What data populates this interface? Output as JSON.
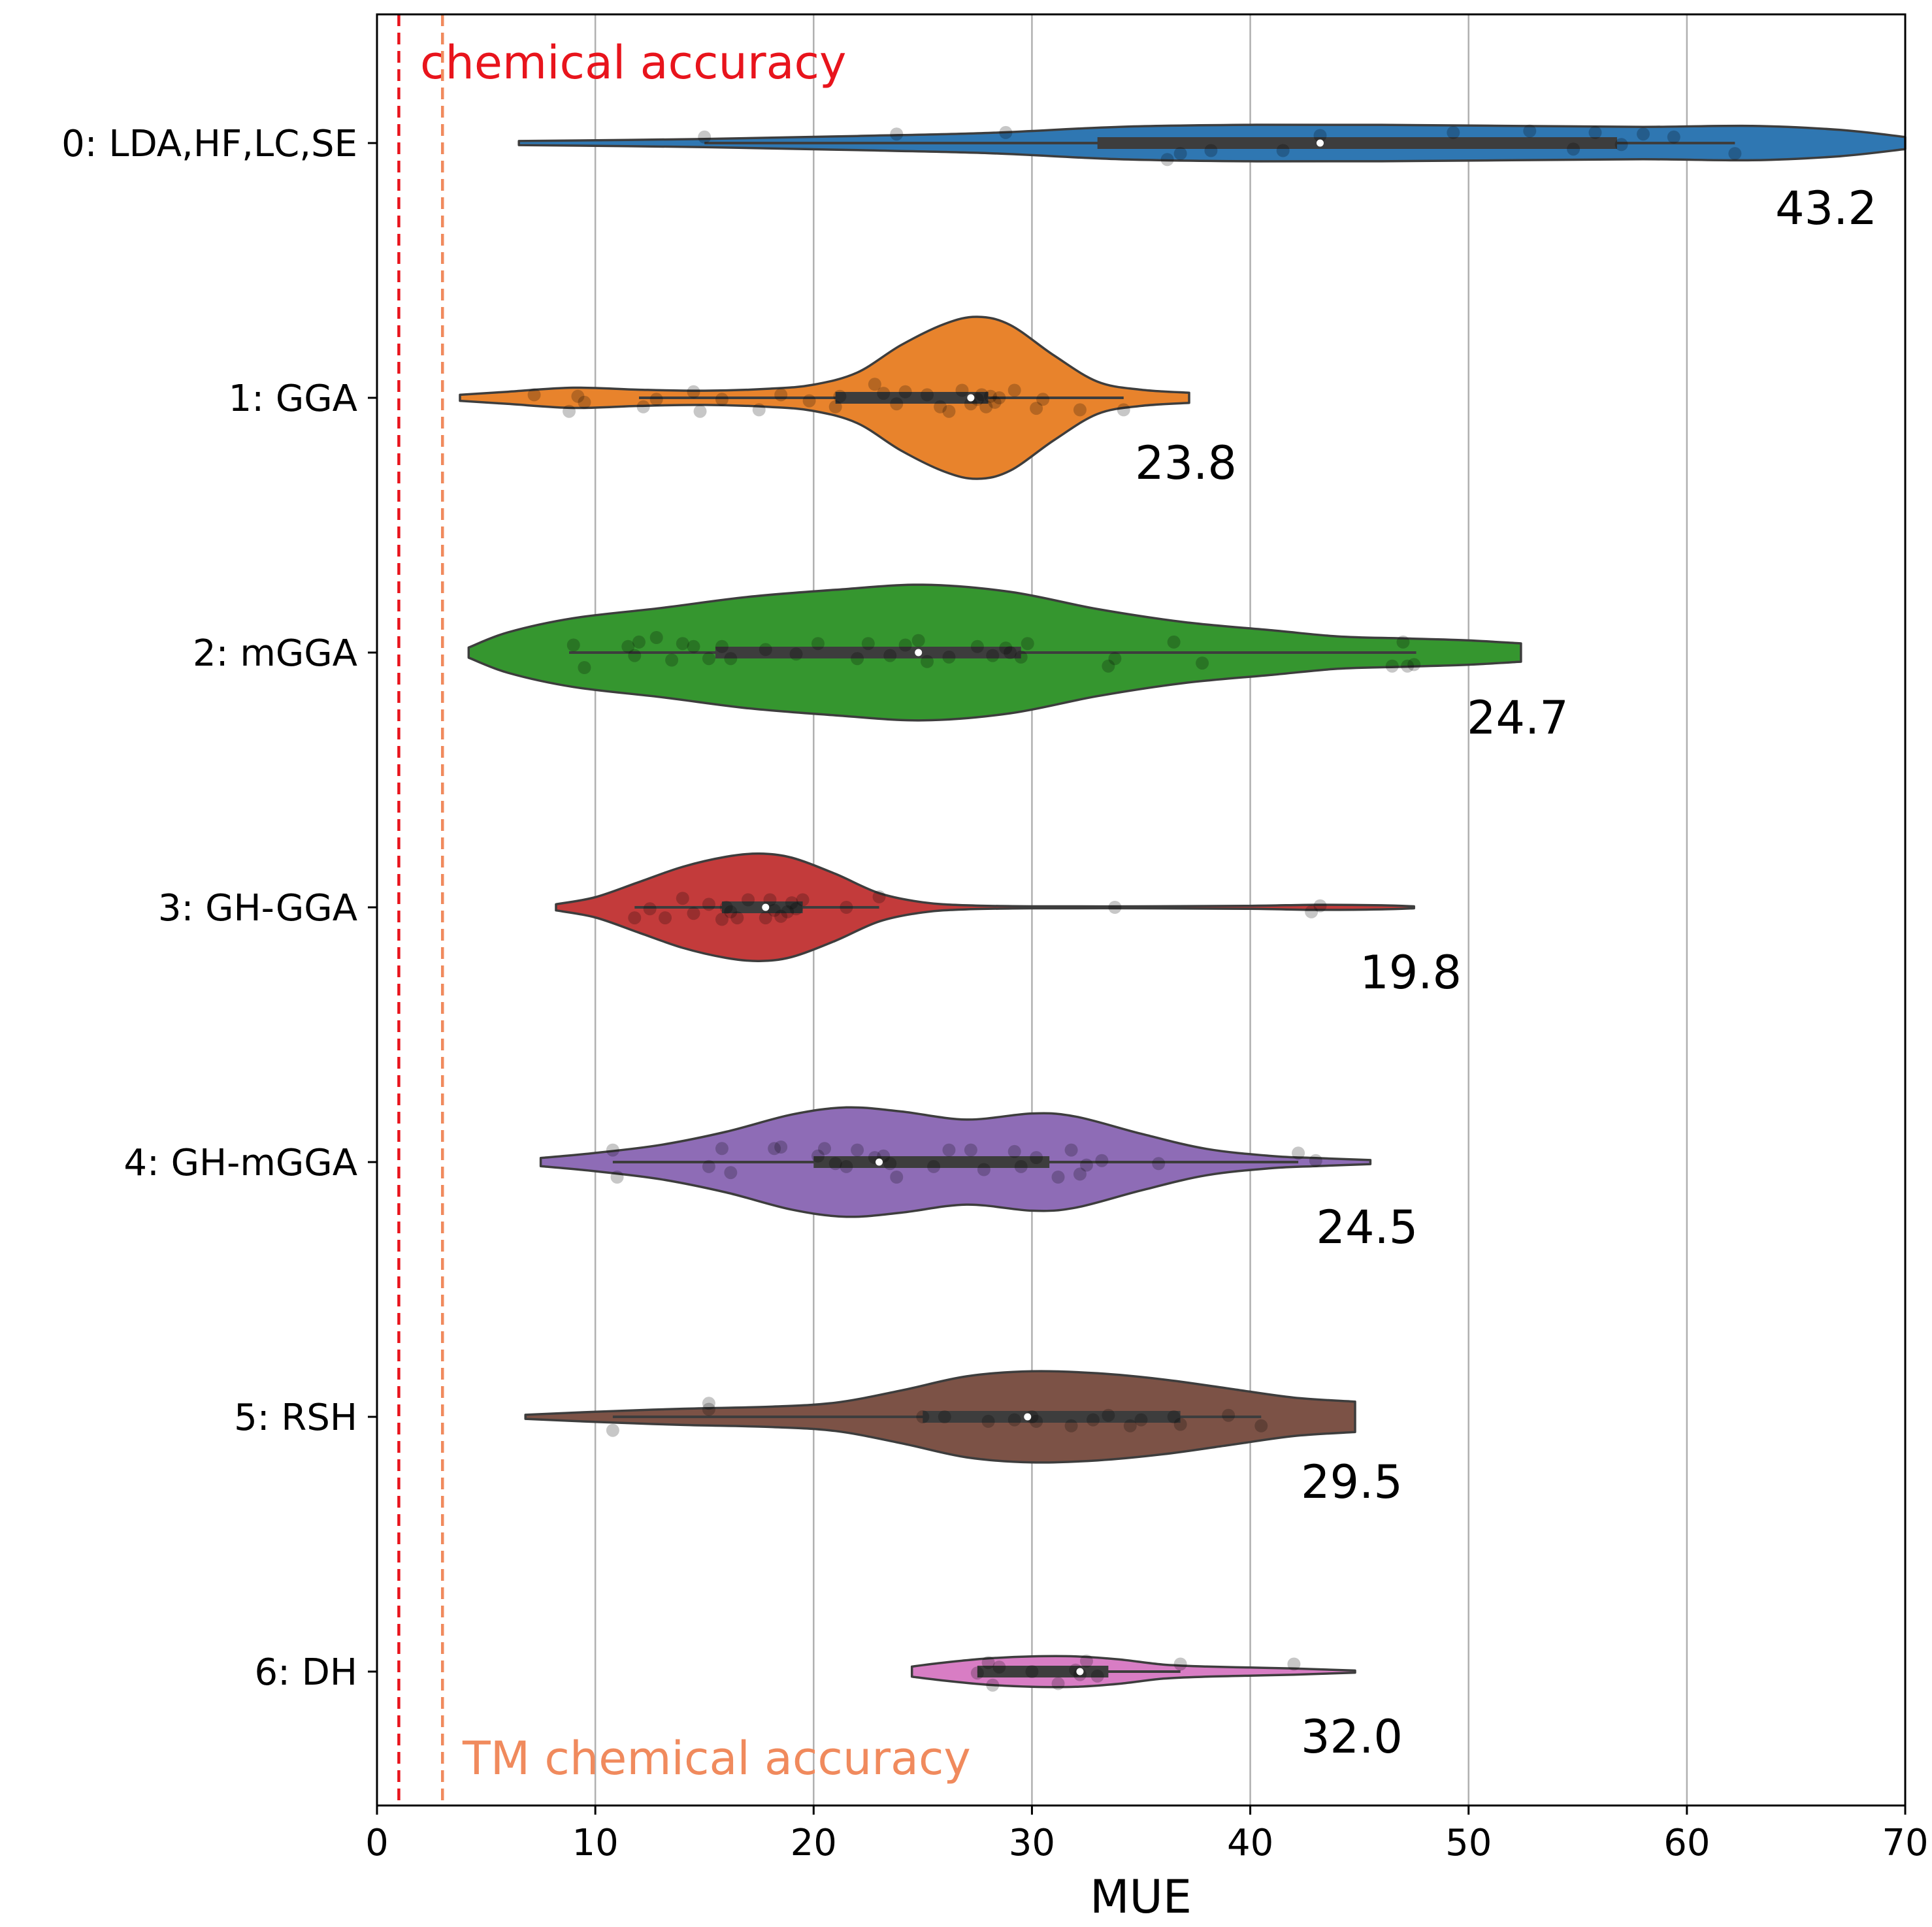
{
  "chart_data": {
    "type": "violin",
    "orientation": "horizontal",
    "xlabel": "MUE",
    "ylabel": "",
    "xlim": [
      0,
      70
    ],
    "xticks": [
      0,
      10,
      20,
      30,
      40,
      50,
      60,
      70
    ],
    "grid": "vertical",
    "reference_lines": [
      {
        "x": 1.0,
        "label": "chemical accuracy",
        "color": "#e8141c",
        "label_position": "top"
      },
      {
        "x": 3.0,
        "label": "TM chemical accuracy",
        "color": "#f08a5d",
        "label_position": "bottom"
      }
    ],
    "categories": [
      {
        "label": "0: LDA,HF,LC,SE",
        "color": "#2f77b2",
        "mean_label": "43.2",
        "extent": [
          6.5,
          70
        ],
        "whiskers": [
          15,
          62.2
        ],
        "iqr": [
          33,
          56.8
        ],
        "median": 43.2,
        "density": [
          [
            6.5,
            0.02
          ],
          [
            15,
            0.04
          ],
          [
            22,
            0.07
          ],
          [
            28,
            0.1
          ],
          [
            34,
            0.16
          ],
          [
            40,
            0.18
          ],
          [
            46,
            0.18
          ],
          [
            52,
            0.17
          ],
          [
            58,
            0.16
          ],
          [
            63,
            0.17
          ],
          [
            67,
            0.13
          ],
          [
            70,
            0.06
          ]
        ],
        "points": [
          [
            15,
            -0.04
          ],
          [
            23.8,
            -0.06
          ],
          [
            28.8,
            -0.07
          ],
          [
            36.2,
            0.11
          ],
          [
            36.8,
            0.07
          ],
          [
            38.2,
            0.05
          ],
          [
            41.5,
            0.05
          ],
          [
            43.2,
            -0.05
          ],
          [
            49.3,
            -0.07
          ],
          [
            52.8,
            -0.08
          ],
          [
            54.8,
            0.04
          ],
          [
            55.8,
            -0.07
          ],
          [
            57,
            0.01
          ],
          [
            58,
            -0.06
          ],
          [
            59.4,
            -0.04
          ],
          [
            62.2,
            0.07
          ]
        ]
      },
      {
        "label": "1: GGA",
        "color": "#e8832c",
        "mean_label": "23.8",
        "extent": [
          3.8,
          37.2
        ],
        "whiskers": [
          12,
          34.2
        ],
        "iqr": [
          21,
          28
        ],
        "median": 27.2,
        "density": [
          [
            3.8,
            0.03
          ],
          [
            6,
            0.06
          ],
          [
            9,
            0.1
          ],
          [
            12,
            0.08
          ],
          [
            15,
            0.07
          ],
          [
            18,
            0.09
          ],
          [
            20,
            0.13
          ],
          [
            22,
            0.25
          ],
          [
            24,
            0.52
          ],
          [
            26,
            0.73
          ],
          [
            27.5,
            0.8
          ],
          [
            29,
            0.72
          ],
          [
            31,
            0.42
          ],
          [
            33,
            0.16
          ],
          [
            35,
            0.08
          ],
          [
            37.2,
            0.05
          ]
        ],
        "points": [
          [
            7.2,
            -0.02
          ],
          [
            8.8,
            0.09
          ],
          [
            9.2,
            -0.01
          ],
          [
            9.5,
            0.03
          ],
          [
            12.2,
            0.06
          ],
          [
            12.8,
            0.01
          ],
          [
            14.5,
            -0.04
          ],
          [
            14.8,
            0.09
          ],
          [
            15.8,
            0.01
          ],
          [
            17.5,
            0.08
          ],
          [
            18.5,
            -0.02
          ],
          [
            19.8,
            0.02
          ],
          [
            21,
            0.06
          ],
          [
            21.2,
            -0.01
          ],
          [
            22.8,
            -0.09
          ],
          [
            23.2,
            -0.03
          ],
          [
            23.8,
            0.04
          ],
          [
            24.2,
            -0.04
          ],
          [
            25.2,
            -0.02
          ],
          [
            25.8,
            0.06
          ],
          [
            26.2,
            0.09
          ],
          [
            26.8,
            -0.05
          ],
          [
            27.2,
            0.04
          ],
          [
            27.5,
            0.01
          ],
          [
            27.7,
            -0.02
          ],
          [
            27.9,
            0.06
          ],
          [
            28.1,
            -0.01
          ],
          [
            28.3,
            0.03
          ],
          [
            28.5,
            0.0
          ],
          [
            29.2,
            -0.05
          ],
          [
            30.2,
            0.07
          ],
          [
            30.5,
            0.01
          ],
          [
            32.2,
            0.08
          ],
          [
            34.2,
            0.08
          ]
        ]
      },
      {
        "label": "2: mGGA",
        "color": "#35962f",
        "mean_label": "24.7",
        "extent": [
          4.2,
          52.4
        ],
        "whiskers": [
          8.8,
          47.6
        ],
        "iqr": [
          15.5,
          29.5
        ],
        "median": 24.8,
        "density": [
          [
            4.2,
            0.05
          ],
          [
            6,
            0.2
          ],
          [
            9,
            0.34
          ],
          [
            13,
            0.44
          ],
          [
            17,
            0.55
          ],
          [
            21,
            0.62
          ],
          [
            25,
            0.67
          ],
          [
            29,
            0.6
          ],
          [
            33,
            0.43
          ],
          [
            37,
            0.3
          ],
          [
            41,
            0.22
          ],
          [
            44,
            0.16
          ],
          [
            47,
            0.14
          ],
          [
            50,
            0.12
          ],
          [
            52.4,
            0.09
          ]
        ],
        "points": [
          [
            9,
            -0.05
          ],
          [
            9.5,
            0.1
          ],
          [
            11.5,
            -0.04
          ],
          [
            11.8,
            0.02
          ],
          [
            12,
            -0.07
          ],
          [
            12.8,
            -0.1
          ],
          [
            13.5,
            0.05
          ],
          [
            14,
            -0.06
          ],
          [
            14.5,
            -0.04
          ],
          [
            15.2,
            0.04
          ],
          [
            15.8,
            -0.04
          ],
          [
            16.2,
            0.04
          ],
          [
            17.8,
            -0.02
          ],
          [
            19.2,
            0.01
          ],
          [
            20.2,
            -0.06
          ],
          [
            22,
            0.04
          ],
          [
            22.5,
            -0.06
          ],
          [
            23.5,
            0.02
          ],
          [
            24.2,
            -0.05
          ],
          [
            24.8,
            -0.08
          ],
          [
            25.2,
            0.06
          ],
          [
            26.2,
            0.03
          ],
          [
            27.5,
            -0.04
          ],
          [
            28.2,
            0.02
          ],
          [
            28.8,
            -0.03
          ],
          [
            29,
            0.0
          ],
          [
            29.5,
            0.03
          ],
          [
            29.8,
            -0.06
          ],
          [
            33.5,
            0.09
          ],
          [
            33.8,
            0.04
          ],
          [
            36.5,
            -0.07
          ],
          [
            37.8,
            0.07
          ],
          [
            46.5,
            0.09
          ],
          [
            47,
            -0.07
          ],
          [
            47.2,
            0.09
          ],
          [
            47.5,
            0.08
          ]
        ]
      },
      {
        "label": "3: GH-GGA",
        "color": "#c33b3b",
        "mean_label": "19.8",
        "extent": [
          8.2,
          47.5
        ],
        "whiskers": [
          11.8,
          23
        ],
        "iqr": [
          15.8,
          19.5
        ],
        "median": 17.8,
        "density": [
          [
            8.2,
            0.03
          ],
          [
            10,
            0.1
          ],
          [
            12,
            0.25
          ],
          [
            14,
            0.4
          ],
          [
            16,
            0.5
          ],
          [
            17.5,
            0.53
          ],
          [
            19,
            0.49
          ],
          [
            21,
            0.33
          ],
          [
            23,
            0.14
          ],
          [
            25,
            0.05
          ],
          [
            27,
            0.02
          ],
          [
            30,
            0.01
          ],
          [
            35,
            0.01
          ],
          [
            40,
            0.015
          ],
          [
            43,
            0.025
          ],
          [
            46,
            0.02
          ],
          [
            47.5,
            0.01
          ]
        ],
        "points": [
          [
            11.8,
            0.07
          ],
          [
            12.5,
            0.01
          ],
          [
            13.2,
            0.07
          ],
          [
            14,
            -0.06
          ],
          [
            14.5,
            0.04
          ],
          [
            15.2,
            -0.02
          ],
          [
            15.8,
            0.08
          ],
          [
            16,
            0.0
          ],
          [
            16.2,
            0.03
          ],
          [
            16.5,
            0.07
          ],
          [
            17,
            -0.05
          ],
          [
            17.8,
            0.07
          ],
          [
            18,
            -0.05
          ],
          [
            18.2,
            0.02
          ],
          [
            18.5,
            0.06
          ],
          [
            18.8,
            0.03
          ],
          [
            19,
            -0.03
          ],
          [
            19.2,
            0.01
          ],
          [
            19.5,
            -0.05
          ],
          [
            21.5,
            0.0
          ],
          [
            23,
            -0.07
          ],
          [
            33.8,
            0.0
          ],
          [
            42.8,
            0.03
          ],
          [
            43.2,
            -0.01
          ]
        ]
      },
      {
        "label": "4: GH-mGGA",
        "color": "#8e6cb6",
        "mean_label": "24.5",
        "extent": [
          7.5,
          45.5
        ],
        "whiskers": [
          10.8,
          42.2
        ],
        "iqr": [
          20,
          30.8
        ],
        "median": 23,
        "density": [
          [
            7.5,
            0.04
          ],
          [
            10,
            0.09
          ],
          [
            13,
            0.17
          ],
          [
            16,
            0.3
          ],
          [
            19,
            0.47
          ],
          [
            21.5,
            0.54
          ],
          [
            24,
            0.5
          ],
          [
            27,
            0.42
          ],
          [
            30,
            0.48
          ],
          [
            32,
            0.45
          ],
          [
            35,
            0.28
          ],
          [
            38,
            0.13
          ],
          [
            41,
            0.06
          ],
          [
            43,
            0.04
          ],
          [
            45.5,
            0.02
          ]
        ],
        "points": [
          [
            10.8,
            -0.08
          ],
          [
            11,
            0.1
          ],
          [
            15.2,
            0.03
          ],
          [
            15.8,
            -0.09
          ],
          [
            16.2,
            0.07
          ],
          [
            18.2,
            -0.09
          ],
          [
            18.5,
            -0.1
          ],
          [
            20.2,
            -0.04
          ],
          [
            20.5,
            -0.09
          ],
          [
            21,
            0.01
          ],
          [
            21.5,
            0.03
          ],
          [
            22,
            -0.08
          ],
          [
            22.8,
            -0.03
          ],
          [
            23.2,
            -0.04
          ],
          [
            23.5,
            0.01
          ],
          [
            23.8,
            0.1
          ],
          [
            25.5,
            0.03
          ],
          [
            26.2,
            -0.08
          ],
          [
            27.2,
            -0.08
          ],
          [
            27.8,
            0.05
          ],
          [
            29.2,
            -0.07
          ],
          [
            29.5,
            0.03
          ],
          [
            30.2,
            -0.03
          ],
          [
            31.2,
            0.1
          ],
          [
            31.8,
            -0.08
          ],
          [
            32.2,
            0.08
          ],
          [
            32.5,
            0.02
          ],
          [
            33.2,
            -0.01
          ],
          [
            35.8,
            0.01
          ],
          [
            42.2,
            -0.06
          ],
          [
            43,
            -0.01
          ]
        ]
      },
      {
        "label": "5: RSH",
        "color": "#7c5246",
        "mean_label": "29.5",
        "extent": [
          6.8,
          44.8
        ],
        "whiskers": [
          10.8,
          40.5
        ],
        "iqr": [
          25,
          36.8
        ],
        "median": 29.8,
        "density": [
          [
            6.8,
            0.02
          ],
          [
            10,
            0.05
          ],
          [
            14,
            0.08
          ],
          [
            18,
            0.1
          ],
          [
            21,
            0.14
          ],
          [
            24,
            0.26
          ],
          [
            27,
            0.4
          ],
          [
            30,
            0.45
          ],
          [
            33,
            0.43
          ],
          [
            36,
            0.37
          ],
          [
            39,
            0.28
          ],
          [
            42,
            0.19
          ],
          [
            44.8,
            0.15
          ]
        ],
        "points": [
          [
            10.8,
            0.09
          ],
          [
            15.2,
            -0.05
          ],
          [
            15.2,
            -0.09
          ],
          [
            25,
            0.0
          ],
          [
            26,
            0.0
          ],
          [
            28,
            0.03
          ],
          [
            29.2,
            0.02
          ],
          [
            30,
            0.0
          ],
          [
            30.2,
            0.03
          ],
          [
            31.8,
            0.06
          ],
          [
            32.8,
            0.02
          ],
          [
            33.5,
            -0.01
          ],
          [
            34.5,
            0.06
          ],
          [
            35,
            0.02
          ],
          [
            36.5,
            0.0
          ],
          [
            36.8,
            0.05
          ],
          [
            39,
            -0.01
          ],
          [
            40.5,
            0.06
          ]
        ]
      },
      {
        "label": "6: DH",
        "color": "#d87dc4",
        "mean_label": "32.0",
        "extent": [
          24.5,
          44.8
        ],
        "whiskers": [
          27.5,
          36.8
        ],
        "iqr": [
          27.5,
          33.5
        ],
        "median": 32.2,
        "density": [
          [
            24.5,
            0.05
          ],
          [
            26,
            0.09
          ],
          [
            28,
            0.13
          ],
          [
            30,
            0.15
          ],
          [
            32,
            0.15
          ],
          [
            34,
            0.12
          ],
          [
            36,
            0.07
          ],
          [
            38,
            0.05
          ],
          [
            40,
            0.04
          ],
          [
            42,
            0.03
          ],
          [
            44.8,
            0.01
          ]
        ],
        "points": [
          [
            27.5,
            0.01
          ],
          [
            28,
            -0.06
          ],
          [
            28.2,
            0.09
          ],
          [
            28.5,
            -0.03
          ],
          [
            30,
            0.0
          ],
          [
            31.2,
            0.08
          ],
          [
            32,
            -0.01
          ],
          [
            32.2,
            0.02
          ],
          [
            32.5,
            -0.07
          ],
          [
            33,
            0.03
          ],
          [
            36.8,
            -0.05
          ],
          [
            42,
            -0.05
          ]
        ]
      }
    ]
  }
}
